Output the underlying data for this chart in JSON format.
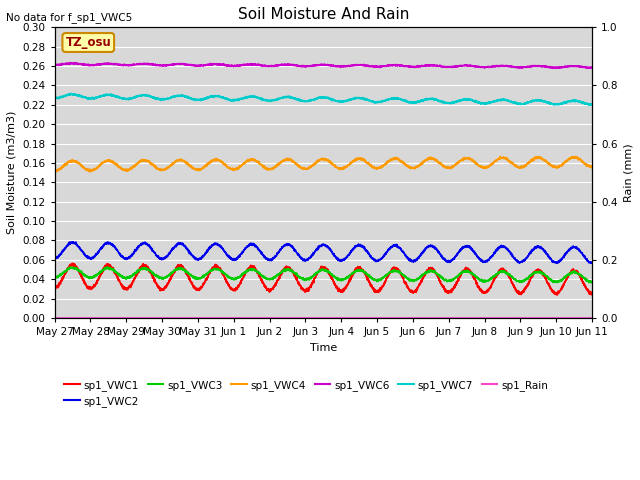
{
  "title": "Soil Moisture And Rain",
  "no_data_text": "No data for f_sp1_VWC5",
  "annotation_text": "TZ_osu",
  "xlabel": "Time",
  "ylabel_left": "Soil Moisture (m3/m3)",
  "ylabel_right": "Rain (mm)",
  "ylim_left": [
    0.0,
    0.3
  ],
  "ylim_right": [
    0.0,
    1.0
  ],
  "total_days": 15,
  "n_points": 3000,
  "series_order": [
    "sp1_VWC1",
    "sp1_VWC2",
    "sp1_VWC3",
    "sp1_VWC4",
    "sp1_VWC6",
    "sp1_VWC7",
    "sp1_Rain"
  ],
  "series": {
    "sp1_VWC1": {
      "color": "#ff0000",
      "base": 0.043,
      "amp": 0.012,
      "period": 1.0,
      "trend": -0.006,
      "noise": 0.0008
    },
    "sp1_VWC2": {
      "color": "#0000ee",
      "base": 0.07,
      "amp": 0.008,
      "period": 1.0,
      "trend": -0.005,
      "noise": 0.0005
    },
    "sp1_VWC3": {
      "color": "#00cc00",
      "base": 0.047,
      "amp": 0.005,
      "period": 1.0,
      "trend": -0.005,
      "noise": 0.0005
    },
    "sp1_VWC4": {
      "color": "#ff9900",
      "base": 0.157,
      "amp": 0.005,
      "period": 1.0,
      "trend": 0.004,
      "noise": 0.0005
    },
    "sp1_VWC6": {
      "color": "#cc00cc",
      "base": 0.262,
      "amp": 0.0008,
      "period": 1.0,
      "trend": -0.003,
      "noise": 0.0003
    },
    "sp1_VWC7": {
      "color": "#00cccc",
      "base": 0.229,
      "amp": 0.002,
      "period": 1.0,
      "trend": -0.007,
      "noise": 0.0004
    },
    "sp1_Rain": {
      "color": "#ff44cc",
      "base": 0.0,
      "amp": 0.0,
      "period": 1.0,
      "trend": 0.0,
      "noise": 0.0
    }
  },
  "legend_entries": [
    {
      "label": "sp1_VWC1",
      "color": "#ff0000"
    },
    {
      "label": "sp1_VWC2",
      "color": "#0000ee"
    },
    {
      "label": "sp1_VWC3",
      "color": "#00cc00"
    },
    {
      "label": "sp1_VWC4",
      "color": "#ff9900"
    },
    {
      "label": "sp1_VWC6",
      "color": "#cc00cc"
    },
    {
      "label": "sp1_VWC7",
      "color": "#00cccc"
    },
    {
      "label": "sp1_Rain",
      "color": "#ff44cc"
    }
  ],
  "xtick_labels": [
    "May 27",
    "May 28",
    "May 29",
    "May 30",
    "May 31",
    "Jun 1",
    "Jun 2",
    "Jun 3",
    "Jun 4",
    "Jun 5",
    "Jun 6",
    "Jun 7",
    "Jun 8",
    "Jun 9",
    "Jun 10",
    "Jun 11"
  ],
  "xtick_positions": [
    0,
    1,
    2,
    3,
    4,
    5,
    6,
    7,
    8,
    9,
    10,
    11,
    12,
    13,
    14,
    15
  ],
  "yticks_left": [
    0.0,
    0.02,
    0.04,
    0.06,
    0.08,
    0.1,
    0.12,
    0.14,
    0.16,
    0.18,
    0.2,
    0.22,
    0.24,
    0.26,
    0.28,
    0.3
  ],
  "yticks_right": [
    0.0,
    0.2,
    0.4,
    0.6,
    0.8,
    1.0
  ],
  "plot_bg": "#d8d8d8",
  "fig_bg": "#ffffff",
  "grid_color": "#ffffff",
  "title_fontsize": 11,
  "axis_fontsize": 8,
  "tick_fontsize": 7.5,
  "linewidth": 1.2
}
